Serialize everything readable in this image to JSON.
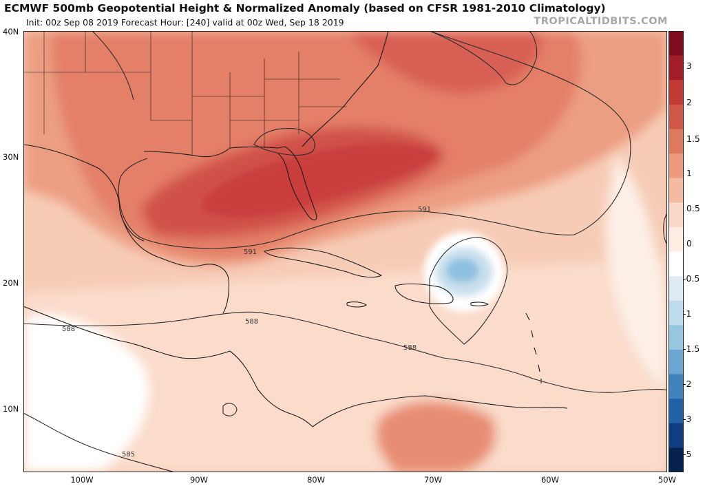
{
  "header": {
    "title": "ECMWF 500mb Geopotential Height & Normalized Anomaly (based on CFSR 1981-2010 Climatology)",
    "subtitle": "Init: 00z Sep 08 2019   Forecast Hour: [240]   valid at 00z Wed, Sep 18 2019",
    "brand": "TROPICALTIDBITS.COM"
  },
  "map": {
    "lat_labels": [
      "40N",
      "30N",
      "20N",
      "10N"
    ],
    "lon_labels": [
      "100W",
      "90W",
      "80W",
      "70W",
      "60W",
      "50W"
    ],
    "contour_labels": [
      "591",
      "591",
      "588",
      "588",
      "588",
      "585"
    ]
  },
  "colorbar": {
    "labels": [
      "3",
      "2",
      "1.5",
      "1",
      "0.5",
      "0",
      "-0.5",
      "-1",
      "-1.5",
      "-2",
      "-3",
      "-5"
    ],
    "colors": [
      "#7e0d1f",
      "#a11e28",
      "#c13a36",
      "#d0584a",
      "#df7a62",
      "#eb9a7f",
      "#f4bba2",
      "#f9d8c7",
      "#fcece2",
      "#ffffff",
      "#deebf3",
      "#c0dbeb",
      "#98c6e0",
      "#6da6d0",
      "#4383bd",
      "#2361a6",
      "#0f3d80",
      "#07214f"
    ]
  },
  "colors": {
    "strong_positive": "#c93d3c",
    "positive": "#e57a62",
    "weak_positive": "#f9d3c0",
    "negative": "#8fc0df",
    "contour": "#2b2b2b"
  }
}
